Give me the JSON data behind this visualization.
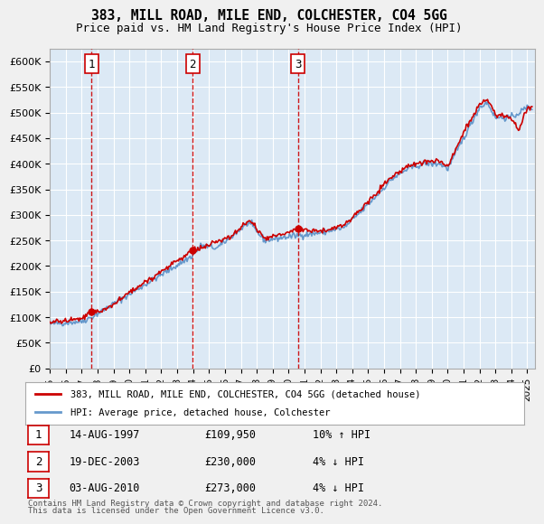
{
  "title": "383, MILL ROAD, MILE END, COLCHESTER, CO4 5GG",
  "subtitle": "Price paid vs. HM Land Registry's House Price Index (HPI)",
  "xlabel": "",
  "ylabel": "",
  "ylim": [
    0,
    625000
  ],
  "xlim_start": 1995.0,
  "xlim_end": 2025.5,
  "yticks": [
    0,
    50000,
    100000,
    150000,
    200000,
    250000,
    300000,
    350000,
    400000,
    450000,
    500000,
    550000,
    600000
  ],
  "ytick_labels": [
    "£0",
    "£50K",
    "£100K",
    "£150K",
    "£200K",
    "£250K",
    "£300K",
    "£350K",
    "£400K",
    "£450K",
    "£500K",
    "£550K",
    "£600K"
  ],
  "background_color": "#dce9f5",
  "plot_bg_color": "#dce9f5",
  "grid_color": "#ffffff",
  "sale_marker_color": "#cc0000",
  "hpi_line_color": "#6699cc",
  "sale_line_color": "#cc0000",
  "vline_color": "#cc0000",
  "vline_style": "--",
  "legend_box_color": "#ffffff",
  "transaction_label_bg": "#ffffff",
  "transaction_label_border": "#cc0000",
  "transactions": [
    {
      "num": 1,
      "date_str": "14-AUG-1997",
      "price": 109950,
      "pct": "10%",
      "dir": "↑",
      "year": 1997.619
    },
    {
      "num": 2,
      "date_str": "19-DEC-2003",
      "price": 230000,
      "pct": "4%",
      "dir": "↓",
      "year": 2003.962
    },
    {
      "num": 3,
      "date_str": "03-AUG-2010",
      "price": 273000,
      "pct": "4%",
      "dir": "↓",
      "year": 2010.586
    }
  ],
  "legend_entries": [
    "383, MILL ROAD, MILE END, COLCHESTER, CO4 5GG (detached house)",
    "HPI: Average price, detached house, Colchester"
  ],
  "footer_lines": [
    "Contains HM Land Registry data © Crown copyright and database right 2024.",
    "This data is licensed under the Open Government Licence v3.0."
  ],
  "xtick_years": [
    1995,
    1996,
    1997,
    1998,
    1999,
    2000,
    2001,
    2002,
    2003,
    2004,
    2005,
    2006,
    2007,
    2008,
    2009,
    2010,
    2011,
    2012,
    2013,
    2014,
    2015,
    2016,
    2017,
    2018,
    2019,
    2020,
    2021,
    2022,
    2023,
    2024,
    2025
  ]
}
